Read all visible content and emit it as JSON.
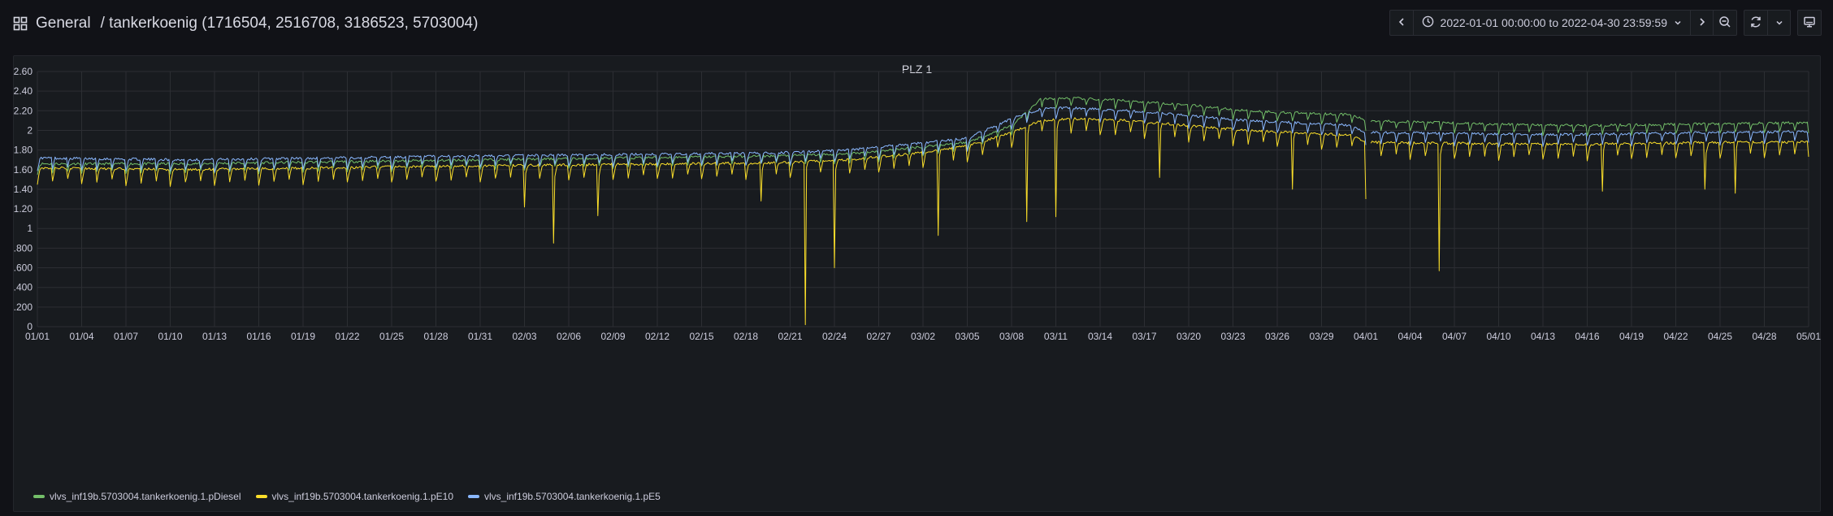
{
  "header": {
    "folder": "General",
    "dashboard_title": "/ tankerkoenig (1716504, 2516708, 3186523, 5703004)",
    "time_range": "2022-01-01 00:00:00 to 2022-04-30 23:59:59"
  },
  "icons": {
    "apps": "grid-icon",
    "back": "chevron-left-icon",
    "clock": "clock-icon",
    "caret": "caret-down-icon",
    "forward": "chevron-right-icon",
    "zoom_out": "zoom-out-icon",
    "refresh": "refresh-icon",
    "refresh_caret": "caret-down-icon",
    "tv": "monitor-icon"
  },
  "colors": {
    "diesel": "#73bf69",
    "e10": "#fade2a",
    "e5": "#8ab8ff",
    "grid": "#2c2e33",
    "axis_text": "#ccccdc"
  },
  "panel": {
    "title": "PLZ 1"
  },
  "chart_data": {
    "type": "line",
    "title": "PLZ 1",
    "xlabel": "",
    "ylabel": "",
    "x_range": [
      "2022-01-01",
      "2022-05-01"
    ],
    "ylim": [
      0,
      2.6
    ],
    "y_ticks": [
      "0",
      "0.200",
      "0.400",
      "0.600",
      "0.800",
      "1",
      "1.20",
      "1.40",
      "1.60",
      "1.80",
      "2",
      "2.20",
      "2.40",
      "2.60"
    ],
    "x_ticks": [
      "01/01",
      "01/04",
      "01/07",
      "01/10",
      "01/13",
      "01/16",
      "01/19",
      "01/22",
      "01/25",
      "01/28",
      "01/31",
      "02/03",
      "02/06",
      "02/09",
      "02/12",
      "02/15",
      "02/18",
      "02/21",
      "02/24",
      "02/27",
      "03/02",
      "03/05",
      "03/08",
      "03/11",
      "03/14",
      "03/17",
      "03/20",
      "03/23",
      "03/26",
      "03/29",
      "04/01",
      "04/04",
      "04/07",
      "04/10",
      "04/13",
      "04/16",
      "04/19",
      "04/22",
      "04/25",
      "04/28",
      "05/01"
    ],
    "grid": true,
    "legend_position": "bottom-left",
    "series": [
      {
        "name": "vlvs_inf19b.5703004.tankerkoenig.1.pDiesel",
        "color": "#73bf69",
        "baseline": [
          [
            0,
            1.66
          ],
          [
            10,
            1.66
          ],
          [
            30,
            1.7
          ],
          [
            50,
            1.74
          ],
          [
            55,
            1.76
          ],
          [
            59,
            1.82
          ],
          [
            63,
            1.88
          ],
          [
            66,
            2.05
          ],
          [
            68,
            2.32
          ],
          [
            70,
            2.33
          ],
          [
            74,
            2.3
          ],
          [
            78,
            2.26
          ],
          [
            82,
            2.2
          ],
          [
            85,
            2.18
          ],
          [
            89,
            2.16
          ],
          [
            90,
            2.1
          ],
          [
            95,
            2.08
          ],
          [
            100,
            2.06
          ],
          [
            105,
            2.05
          ],
          [
            110,
            2.06
          ],
          [
            115,
            2.07
          ],
          [
            120,
            2.08
          ]
        ],
        "dip_depth": 0.1
      },
      {
        "name": "vlvs_inf19b.5703004.tankerkoenig.1.pE10",
        "color": "#fade2a",
        "baseline": [
          [
            0,
            1.62
          ],
          [
            10,
            1.6
          ],
          [
            30,
            1.64
          ],
          [
            50,
            1.67
          ],
          [
            55,
            1.7
          ],
          [
            59,
            1.76
          ],
          [
            63,
            1.84
          ],
          [
            66,
            1.98
          ],
          [
            68,
            2.1
          ],
          [
            70,
            2.12
          ],
          [
            74,
            2.1
          ],
          [
            78,
            2.05
          ],
          [
            82,
            2.0
          ],
          [
            85,
            1.98
          ],
          [
            89,
            1.95
          ],
          [
            90,
            1.88
          ],
          [
            95,
            1.87
          ],
          [
            100,
            1.86
          ],
          [
            105,
            1.86
          ],
          [
            110,
            1.87
          ],
          [
            115,
            1.88
          ],
          [
            120,
            1.88
          ]
        ],
        "dip_depth": 0.16,
        "spikes": [
          [
            33,
            1.22
          ],
          [
            35,
            0.85
          ],
          [
            38,
            1.13
          ],
          [
            49,
            1.28
          ],
          [
            52,
            0.02
          ],
          [
            54,
            0.6
          ],
          [
            61,
            0.93
          ],
          [
            67,
            1.07
          ],
          [
            69,
            1.12
          ],
          [
            76,
            1.52
          ],
          [
            85,
            1.4
          ],
          [
            90,
            1.3
          ],
          [
            95,
            0.57
          ],
          [
            106,
            1.38
          ],
          [
            113,
            1.4
          ],
          [
            115,
            1.36
          ]
        ]
      },
      {
        "name": "vlvs_inf19b.5703004.tankerkoenig.1.pE5",
        "color": "#8ab8ff",
        "baseline": [
          [
            0,
            1.72
          ],
          [
            10,
            1.7
          ],
          [
            30,
            1.74
          ],
          [
            50,
            1.77
          ],
          [
            55,
            1.8
          ],
          [
            59,
            1.86
          ],
          [
            63,
            1.92
          ],
          [
            66,
            2.12
          ],
          [
            68,
            2.22
          ],
          [
            70,
            2.23
          ],
          [
            74,
            2.2
          ],
          [
            78,
            2.15
          ],
          [
            82,
            2.1
          ],
          [
            85,
            2.08
          ],
          [
            89,
            2.05
          ],
          [
            90,
            1.98
          ],
          [
            95,
            1.97
          ],
          [
            100,
            1.96
          ],
          [
            105,
            1.96
          ],
          [
            110,
            1.97
          ],
          [
            115,
            1.98
          ],
          [
            120,
            1.99
          ]
        ],
        "dip_depth": 0.12
      }
    ]
  }
}
